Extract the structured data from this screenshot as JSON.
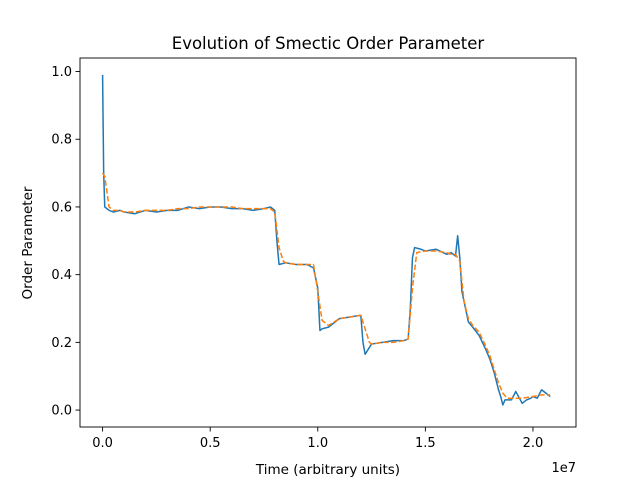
{
  "chart_data": {
    "type": "line",
    "title": "Evolution of Smectic Order Parameter",
    "xlabel": "Time (arbitrary units)",
    "ylabel": "Order Parameter",
    "x_offset_label": "1e7",
    "xlim": [
      -0.105,
      2.2
    ],
    "ylim": [
      -0.05,
      1.04
    ],
    "x_ticks": [
      0.0,
      0.5,
      1.0,
      1.5,
      2.0
    ],
    "x_tick_labels": [
      "0.0",
      "0.5",
      "1.0",
      "1.5",
      "2.0"
    ],
    "y_ticks": [
      0.0,
      0.2,
      0.4,
      0.6,
      0.8,
      1.0
    ],
    "y_tick_labels": [
      "0.0",
      "0.2",
      "0.4",
      "0.6",
      "0.8",
      "1.0"
    ],
    "grid": false,
    "legend": "none",
    "series": [
      {
        "style": "solid",
        "color": "#1f77b4",
        "x": [
          0.0,
          0.005,
          0.01,
          0.02,
          0.03,
          0.05,
          0.08,
          0.1,
          0.15,
          0.2,
          0.25,
          0.3,
          0.35,
          0.4,
          0.45,
          0.5,
          0.55,
          0.6,
          0.65,
          0.7,
          0.75,
          0.78,
          0.8,
          0.81,
          0.82,
          0.85,
          0.9,
          0.95,
          0.98,
          1.0,
          1.01,
          1.02,
          1.05,
          1.1,
          1.15,
          1.2,
          1.21,
          1.22,
          1.25,
          1.3,
          1.35,
          1.4,
          1.42,
          1.43,
          1.44,
          1.45,
          1.48,
          1.5,
          1.55,
          1.6,
          1.62,
          1.64,
          1.65,
          1.66,
          1.67,
          1.7,
          1.72,
          1.75,
          1.78,
          1.8,
          1.82,
          1.84,
          1.85,
          1.86,
          1.87,
          1.9,
          1.92,
          1.95,
          1.97,
          1.99,
          2.0,
          2.02,
          2.04,
          2.06,
          2.08
        ],
        "y": [
          0.99,
          0.7,
          0.6,
          0.595,
          0.59,
          0.585,
          0.59,
          0.585,
          0.58,
          0.59,
          0.585,
          0.59,
          0.59,
          0.6,
          0.595,
          0.6,
          0.6,
          0.595,
          0.595,
          0.59,
          0.595,
          0.6,
          0.59,
          0.5,
          0.43,
          0.435,
          0.43,
          0.43,
          0.42,
          0.36,
          0.235,
          0.24,
          0.245,
          0.27,
          0.275,
          0.28,
          0.2,
          0.165,
          0.195,
          0.2,
          0.205,
          0.205,
          0.21,
          0.3,
          0.45,
          0.48,
          0.475,
          0.47,
          0.475,
          0.46,
          0.465,
          0.455,
          0.515,
          0.45,
          0.35,
          0.26,
          0.245,
          0.22,
          0.18,
          0.15,
          0.11,
          0.06,
          0.04,
          0.015,
          0.03,
          0.03,
          0.055,
          0.02,
          0.03,
          0.035,
          0.04,
          0.035,
          0.06,
          0.05,
          0.04
        ]
      },
      {
        "style": "dashed",
        "color": "#ff7f0e",
        "x": [
          0.0,
          0.01,
          0.03,
          0.05,
          0.08,
          0.1,
          0.15,
          0.2,
          0.25,
          0.3,
          0.35,
          0.4,
          0.45,
          0.5,
          0.55,
          0.6,
          0.65,
          0.7,
          0.75,
          0.78,
          0.8,
          0.82,
          0.84,
          0.85,
          0.9,
          0.95,
          0.98,
          1.0,
          1.02,
          1.05,
          1.1,
          1.15,
          1.2,
          1.22,
          1.24,
          1.25,
          1.3,
          1.35,
          1.4,
          1.42,
          1.44,
          1.46,
          1.5,
          1.55,
          1.6,
          1.62,
          1.64,
          1.66,
          1.68,
          1.7,
          1.72,
          1.75,
          1.78,
          1.8,
          1.82,
          1.84,
          1.86,
          1.88,
          1.9,
          1.95,
          2.0,
          2.04,
          2.08
        ],
        "y": [
          0.7,
          0.69,
          0.6,
          0.59,
          0.59,
          0.585,
          0.585,
          0.59,
          0.59,
          0.59,
          0.595,
          0.595,
          0.6,
          0.6,
          0.6,
          0.6,
          0.595,
          0.595,
          0.595,
          0.595,
          0.585,
          0.48,
          0.44,
          0.435,
          0.43,
          0.43,
          0.43,
          0.35,
          0.265,
          0.25,
          0.27,
          0.275,
          0.28,
          0.24,
          0.2,
          0.195,
          0.2,
          0.2,
          0.205,
          0.21,
          0.36,
          0.465,
          0.47,
          0.47,
          0.465,
          0.46,
          0.46,
          0.44,
          0.32,
          0.27,
          0.25,
          0.23,
          0.19,
          0.16,
          0.12,
          0.08,
          0.05,
          0.035,
          0.035,
          0.035,
          0.04,
          0.045,
          0.045
        ]
      }
    ]
  }
}
